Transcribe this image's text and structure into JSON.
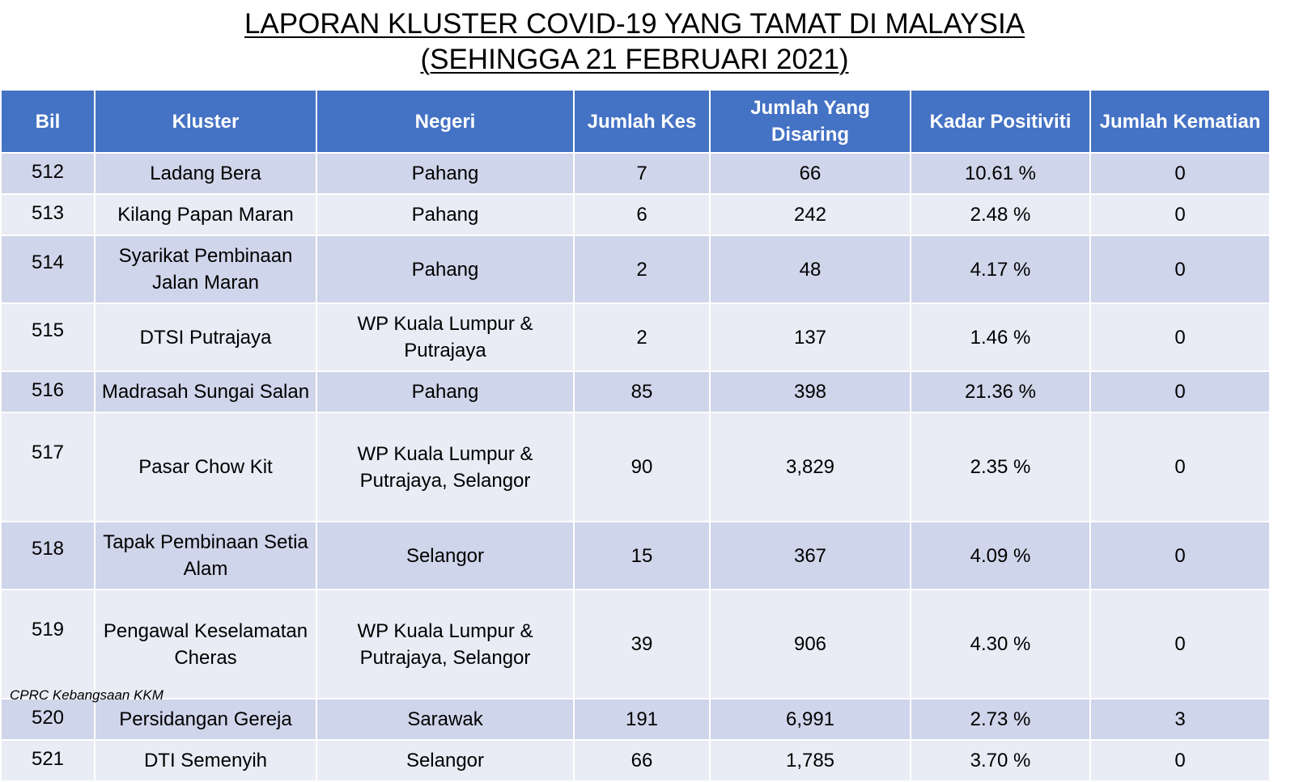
{
  "title": {
    "line1": "LAPORAN KLUSTER COVID-19 YANG TAMAT DI MALAYSIA",
    "line2": "(SEHINGGA 21 FEBRUARI 2021)"
  },
  "columns": [
    "Bil",
    "Kluster",
    "Negeri",
    "Jumlah Kes",
    "Jumlah Yang Disaring",
    "Kadar Positiviti",
    "Jumlah Kematian"
  ],
  "rows": [
    {
      "bil": "512",
      "kluster": "Ladang Bera",
      "negeri": "Pahang",
      "kes": "7",
      "disaring": "66",
      "positiviti": "10.61 %",
      "kematian": "0"
    },
    {
      "bil": "513",
      "kluster": "Kilang Papan Maran",
      "negeri": "Pahang",
      "kes": "6",
      "disaring": "242",
      "positiviti": "2.48 %",
      "kematian": "0"
    },
    {
      "bil": "514",
      "kluster": "Syarikat Pembinaan Jalan Maran",
      "negeri": "Pahang",
      "kes": "2",
      "disaring": "48",
      "positiviti": "4.17 %",
      "kematian": "0"
    },
    {
      "bil": "515",
      "kluster": "DTSI Putrajaya",
      "negeri": "WP Kuala Lumpur & Putrajaya",
      "kes": "2",
      "disaring": "137",
      "positiviti": "1.46 %",
      "kematian": "0"
    },
    {
      "bil": "516",
      "kluster": "Madrasah Sungai Salan",
      "negeri": "Pahang",
      "kes": "85",
      "disaring": "398",
      "positiviti": "21.36 %",
      "kematian": "0"
    },
    {
      "bil": "517",
      "kluster": "Pasar Chow Kit",
      "negeri": "WP Kuala Lumpur & Putrajaya, Selangor",
      "kes": "90",
      "disaring": "3,829",
      "positiviti": "2.35 %",
      "kematian": "0"
    },
    {
      "bil": "518",
      "kluster": "Tapak Pembinaan Setia Alam",
      "negeri": "Selangor",
      "kes": "15",
      "disaring": "367",
      "positiviti": "4.09 %",
      "kematian": "0"
    },
    {
      "bil": "519",
      "kluster": "Pengawal Keselamatan Cheras",
      "negeri": "WP Kuala Lumpur & Putrajaya, Selangor",
      "kes": "39",
      "disaring": "906",
      "positiviti": "4.30 %",
      "kematian": "0"
    },
    {
      "bil": "520",
      "kluster": "Persidangan Gereja",
      "negeri": "Sarawak",
      "kes": "191",
      "disaring": "6,991",
      "positiviti": "2.73 %",
      "kematian": "3"
    },
    {
      "bil": "521",
      "kluster": "DTI Semenyih",
      "negeri": "Selangor",
      "kes": "66",
      "disaring": "1,785",
      "positiviti": "3.70 %",
      "kematian": "0"
    }
  ],
  "footer": "CPRC Kebangsaan KKM",
  "colors": {
    "header_bg": "#4472c4",
    "row_odd": "#cfd5ea",
    "row_even": "#e9ebf5"
  }
}
